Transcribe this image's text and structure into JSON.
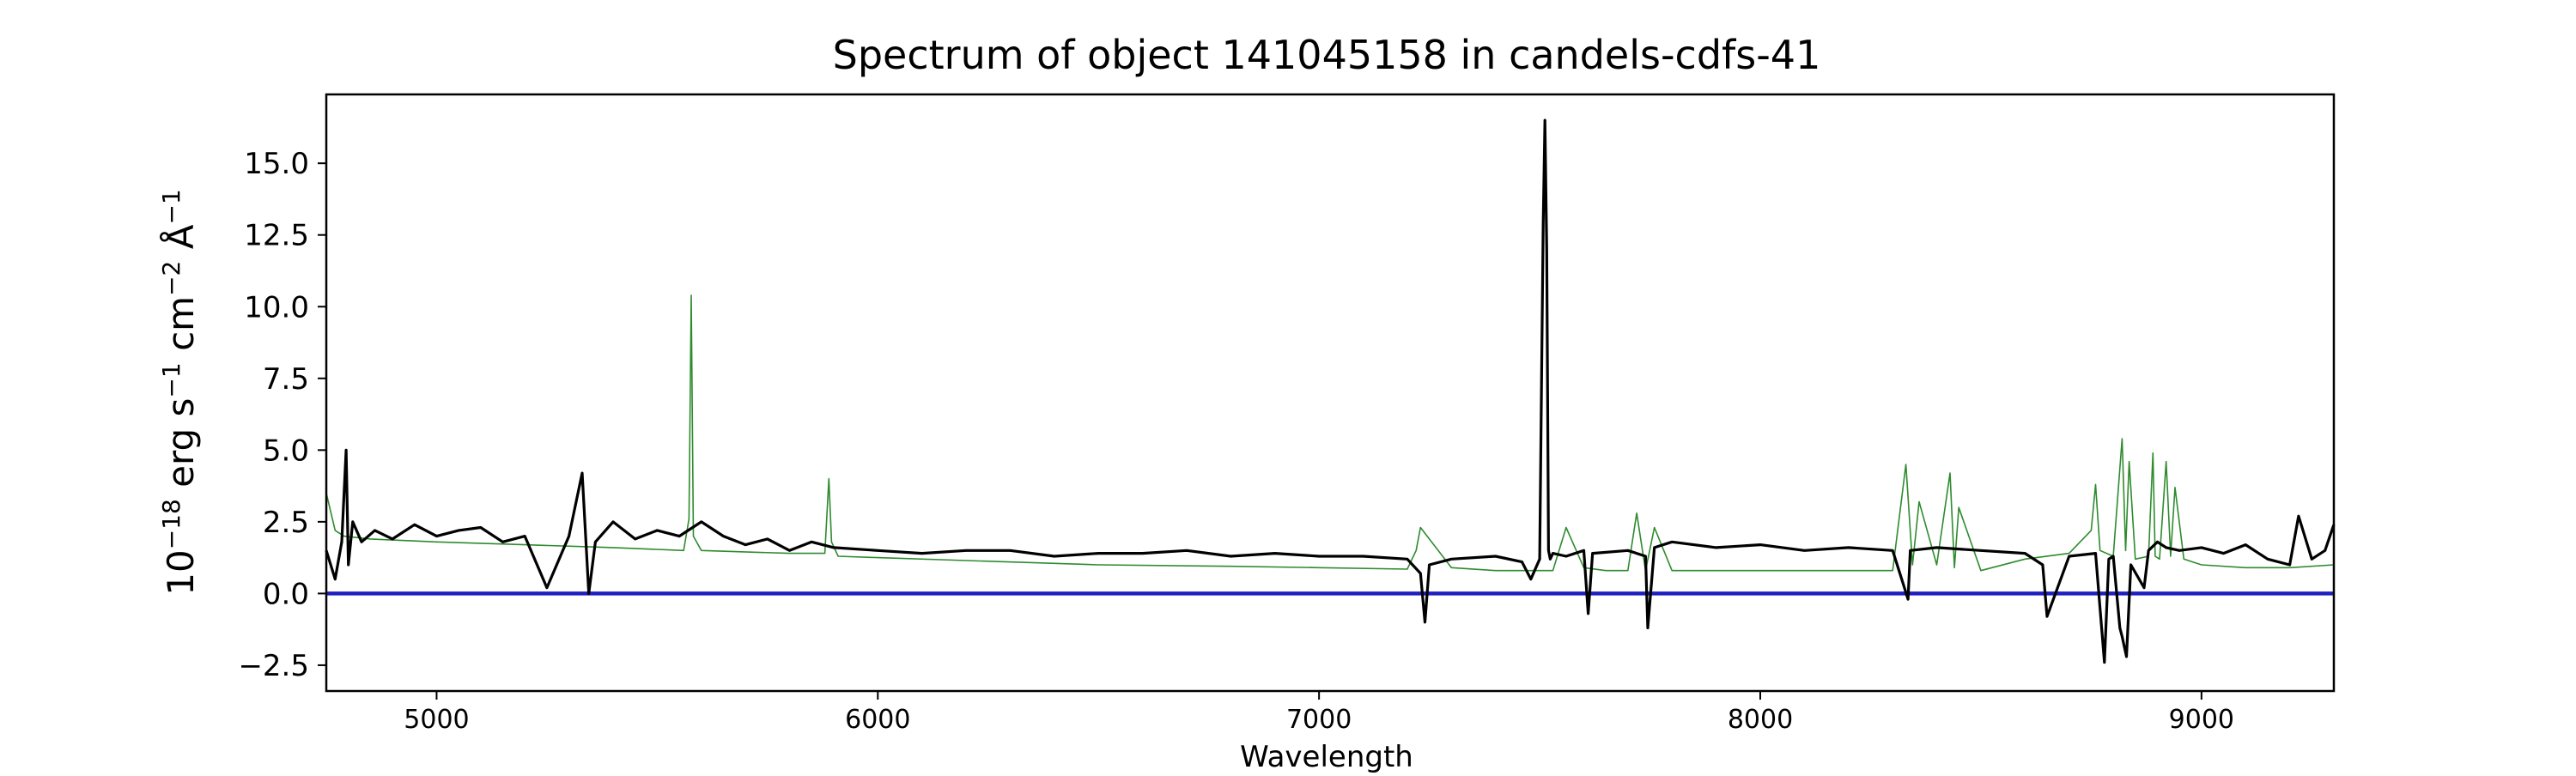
{
  "chart_data": {
    "type": "line",
    "title": "Spectrum of object 141045158 in candels-cdfs-41",
    "xlabel": "Wavelength",
    "ylabel_base": "10",
    "ylabel_exp": "−18",
    "ylabel_units": [
      {
        "text": " erg s",
        "sup": "−1"
      },
      {
        "text": " cm",
        "sup": "−2"
      },
      {
        "text": " Å",
        "sup": "−1"
      }
    ],
    "xlim": [
      4750,
      9300
    ],
    "ylim": [
      -3.4,
      17.4
    ],
    "xticks": [
      5000,
      6000,
      7000,
      8000,
      9000
    ],
    "xtick_labels": [
      "5000",
      "6000",
      "7000",
      "8000",
      "9000"
    ],
    "yticks": [
      -2.5,
      0.0,
      2.5,
      5.0,
      7.5,
      10.0,
      12.5,
      15.0
    ],
    "ytick_labels": [
      "−2.5",
      "0.0",
      "2.5",
      "5.0",
      "7.5",
      "10.0",
      "12.5",
      "15.0"
    ],
    "grid": false,
    "series": [
      {
        "role": "model",
        "color": "#2e8b2e",
        "x": [
          4750,
          4770,
          4790,
          4850,
          5000,
          5200,
          5400,
          5560,
          5572,
          5577,
          5582,
          5600,
          5800,
          5880,
          5889,
          5895,
          5910,
          6000,
          6200,
          6500,
          6800,
          7000,
          7200,
          7220,
          7230,
          7300,
          7400,
          7480,
          7530,
          7560,
          7600,
          7650,
          7700,
          7720,
          7740,
          7760,
          7800,
          7900,
          8000,
          8100,
          8200,
          8300,
          8330,
          8345,
          8360,
          8400,
          8430,
          8440,
          8450,
          8500,
          8600,
          8700,
          8750,
          8760,
          8770,
          8800,
          8820,
          8828,
          8836,
          8850,
          8880,
          8890,
          8895,
          8905,
          8920,
          8930,
          8940,
          8960,
          9000,
          9100,
          9200,
          9300
        ],
        "y": [
          3.5,
          2.2,
          2.0,
          1.9,
          1.8,
          1.7,
          1.6,
          1.5,
          2.6,
          10.4,
          2.0,
          1.5,
          1.4,
          1.4,
          4.0,
          1.8,
          1.3,
          1.25,
          1.15,
          1.0,
          0.95,
          0.9,
          0.85,
          1.5,
          2.3,
          0.9,
          0.8,
          0.8,
          0.8,
          2.3,
          0.9,
          0.8,
          0.8,
          2.8,
          0.8,
          2.3,
          0.8,
          0.8,
          0.8,
          0.8,
          0.8,
          0.8,
          4.5,
          1.0,
          3.2,
          1.0,
          4.2,
          0.9,
          3.0,
          0.8,
          1.2,
          1.4,
          2.2,
          3.8,
          1.5,
          1.3,
          5.4,
          1.5,
          4.6,
          1.2,
          1.3,
          4.9,
          1.3,
          1.2,
          4.6,
          1.3,
          3.7,
          1.2,
          1.0,
          0.9,
          0.9,
          1.0
        ]
      },
      {
        "role": "zero",
        "color": "#1f1fbf",
        "x": [
          4750,
          9300
        ],
        "y": [
          0.0,
          0.0
        ]
      },
      {
        "role": "spectrum",
        "color": "#000000",
        "x": [
          4750,
          4770,
          4785,
          4795,
          4800,
          4810,
          4830,
          4860,
          4900,
          4950,
          5000,
          5050,
          5100,
          5150,
          5200,
          5250,
          5300,
          5330,
          5345,
          5360,
          5400,
          5450,
          5500,
          5550,
          5600,
          5650,
          5700,
          5750,
          5800,
          5850,
          5900,
          6000,
          6100,
          6200,
          6300,
          6400,
          6500,
          6600,
          6700,
          6800,
          6900,
          7000,
          7100,
          7200,
          7230,
          7240,
          7250,
          7300,
          7400,
          7460,
          7480,
          7500,
          7508,
          7512,
          7516,
          7520,
          7524,
          7530,
          7560,
          7600,
          7610,
          7620,
          7700,
          7740,
          7745,
          7760,
          7800,
          7900,
          8000,
          8100,
          8200,
          8300,
          8335,
          8340,
          8400,
          8500,
          8600,
          8640,
          8650,
          8700,
          8760,
          8780,
          8790,
          8800,
          8815,
          8820,
          8830,
          8840,
          8870,
          8880,
          8900,
          8920,
          8950,
          9000,
          9050,
          9100,
          9150,
          9200,
          9220,
          9250,
          9280,
          9300
        ],
        "y": [
          1.5,
          0.5,
          1.8,
          5.0,
          1.0,
          2.5,
          1.8,
          2.2,
          1.9,
          2.4,
          2.0,
          2.2,
          2.3,
          1.8,
          2.0,
          0.2,
          2.0,
          4.2,
          0.0,
          1.8,
          2.5,
          1.9,
          2.2,
          2.0,
          2.5,
          2.0,
          1.7,
          1.9,
          1.5,
          1.8,
          1.6,
          1.5,
          1.4,
          1.5,
          1.5,
          1.3,
          1.4,
          1.4,
          1.5,
          1.3,
          1.4,
          1.3,
          1.3,
          1.2,
          0.7,
          -1.0,
          1.0,
          1.2,
          1.3,
          1.1,
          0.5,
          1.2,
          12.9,
          16.5,
          12.0,
          1.5,
          1.2,
          1.4,
          1.3,
          1.5,
          -0.7,
          1.4,
          1.5,
          1.3,
          -1.2,
          1.6,
          1.8,
          1.6,
          1.7,
          1.5,
          1.6,
          1.5,
          -0.2,
          1.5,
          1.6,
          1.5,
          1.4,
          1.0,
          -0.8,
          1.3,
          1.4,
          -2.4,
          1.2,
          1.3,
          -1.2,
          -1.5,
          -2.2,
          1.0,
          0.2,
          1.5,
          1.8,
          1.6,
          1.5,
          1.6,
          1.4,
          1.7,
          1.2,
          1.0,
          2.7,
          1.2,
          1.5,
          2.4
        ]
      }
    ]
  }
}
